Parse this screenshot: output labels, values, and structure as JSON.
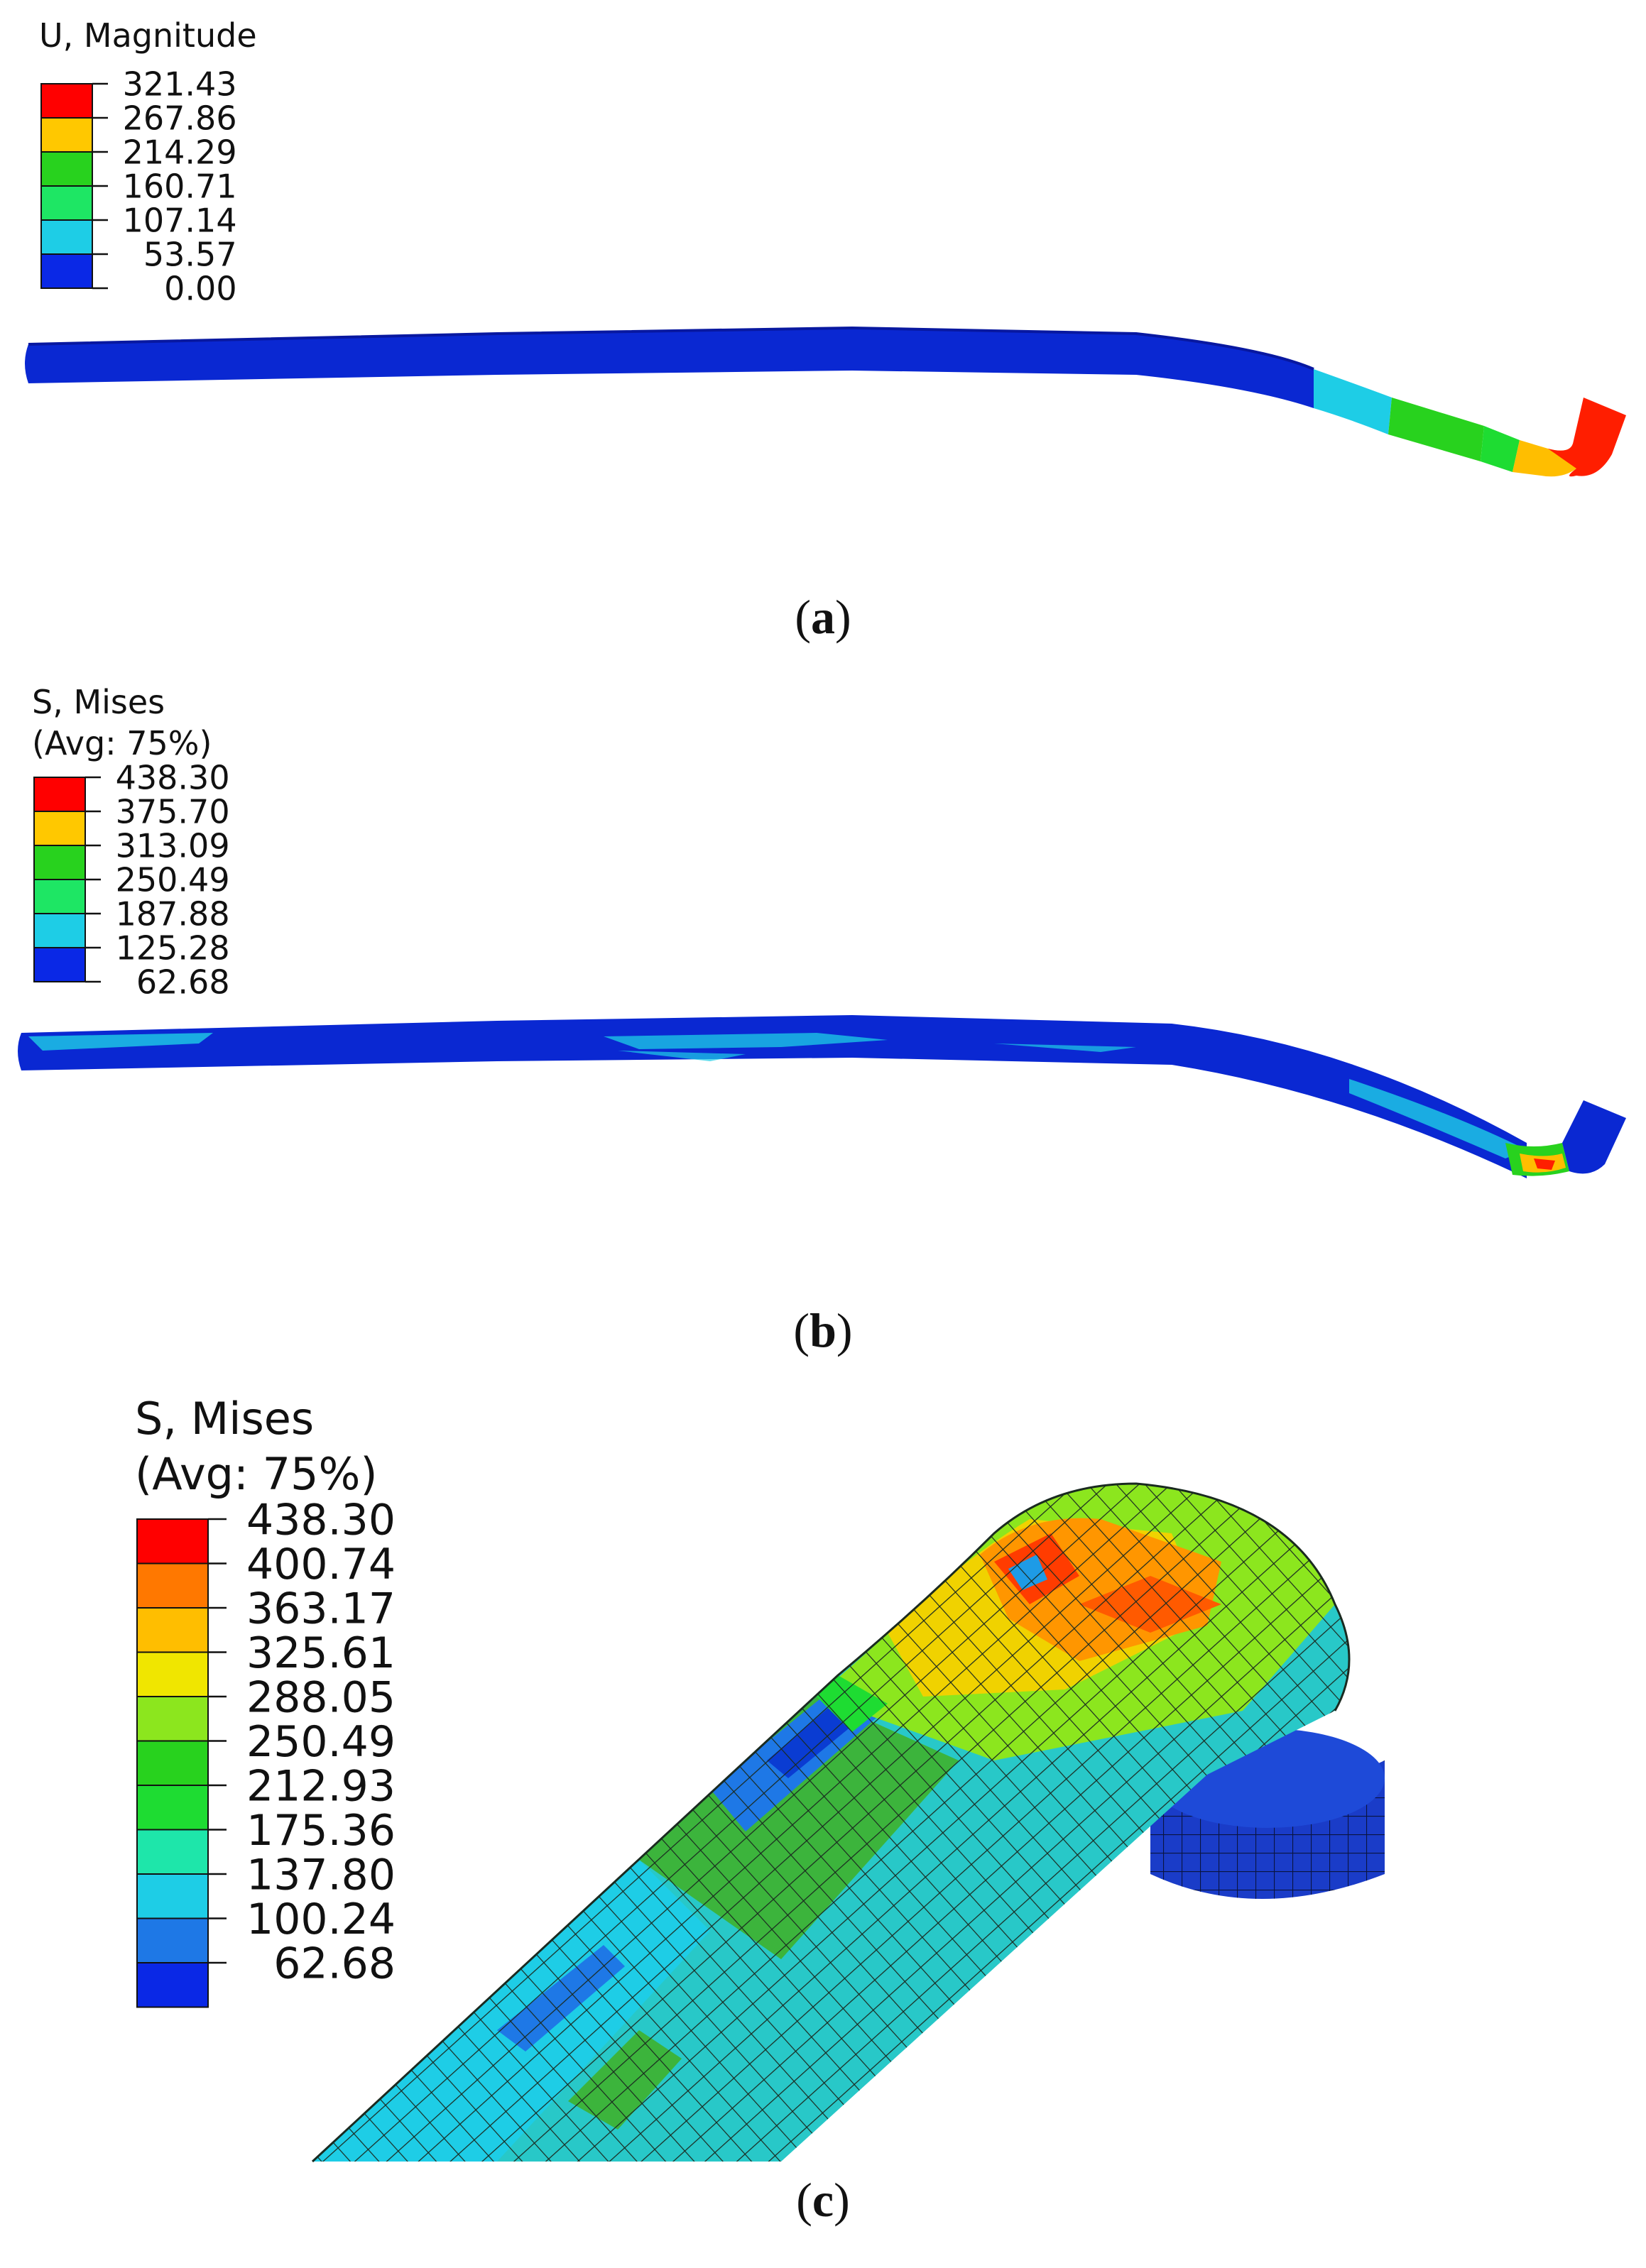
{
  "panels": [
    {
      "id": "a",
      "caption_letter": "a",
      "legend": {
        "title_lines": [
          "U, Magnitude"
        ],
        "values": [
          "321.43",
          "267.86",
          "214.29",
          "160.71",
          "107.14",
          "53.57",
          "0.00"
        ],
        "colors": [
          "#ff0000",
          "#ffc800",
          "#28d21e",
          "#1ee664",
          "#1ecde6",
          "#0a28e6"
        ]
      }
    },
    {
      "id": "b",
      "caption_letter": "b",
      "legend": {
        "title_lines": [
          "S, Mises",
          "(Avg: 75%)"
        ],
        "values": [
          "438.30",
          "375.70",
          "313.09",
          "250.49",
          "187.88",
          "125.28",
          "62.68"
        ],
        "colors": [
          "#ff0000",
          "#ffc800",
          "#28d21e",
          "#1ee664",
          "#1ecde6",
          "#0a28e6"
        ]
      }
    },
    {
      "id": "c",
      "caption_letter": "c",
      "legend": {
        "title_lines": [
          "S, Mises",
          "(Avg: 75%)"
        ],
        "values": [
          "438.30",
          "400.74",
          "363.17",
          "325.61",
          "288.05",
          "250.49",
          "212.93",
          "175.36",
          "137.80",
          "100.24",
          "62.68"
        ],
        "colors": [
          "#ff0000",
          "#ff7800",
          "#ffbe00",
          "#f0e600",
          "#8ce61e",
          "#28d21e",
          "#1edc32",
          "#1ee6aa",
          "#1ecde6",
          "#1e78e6",
          "#0a28e6"
        ]
      }
    }
  ]
}
